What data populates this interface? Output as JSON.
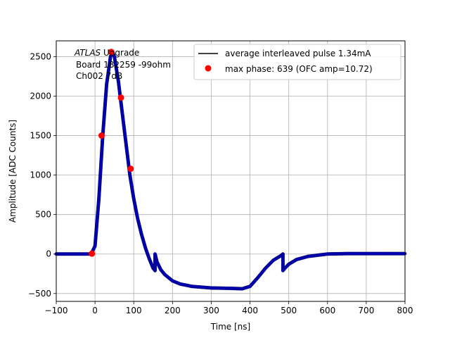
{
  "chart_data": {
    "type": "line",
    "title": "",
    "xlabel": "Time [ns]",
    "ylabel": "Amplitude [ADC Counts]",
    "xlim": [
      -100,
      800
    ],
    "ylim": [
      -600,
      2700
    ],
    "xticks": [
      -100,
      0,
      100,
      200,
      300,
      400,
      500,
      600,
      700,
      800
    ],
    "yticks": [
      -500,
      0,
      500,
      1000,
      1500,
      2000,
      2500
    ],
    "grid": true,
    "legend_position": "top-right",
    "annotation": {
      "italic": "ATLAS",
      "line1_rest": " Upgrade",
      "line2": "Board 182259 -99ohm",
      "line3": "Ch002 7dB"
    },
    "series": [
      {
        "name": "average interleaved pulse 1.34mA",
        "color": "#000000",
        "marker_color": "#0000cc",
        "x": [
          -100,
          -50,
          -10,
          0,
          10,
          20,
          30,
          40,
          45,
          50,
          60,
          70,
          80,
          90,
          100,
          110,
          120,
          130,
          140,
          150,
          155,
          155,
          160,
          170,
          180,
          200,
          220,
          250,
          300,
          350,
          380,
          400,
          420,
          440,
          460,
          480,
          485,
          485,
          490,
          500,
          520,
          550,
          600,
          650,
          700,
          750,
          800
        ],
        "y": [
          0,
          0,
          0,
          100,
          700,
          1500,
          2150,
          2500,
          2560,
          2500,
          2200,
          1800,
          1400,
          1000,
          700,
          450,
          250,
          80,
          -60,
          -180,
          -210,
          0,
          -100,
          -200,
          -260,
          -340,
          -380,
          -410,
          -430,
          -435,
          -440,
          -410,
          -300,
          -180,
          -80,
          -20,
          0,
          -210,
          -180,
          -130,
          -70,
          -30,
          0,
          5,
          5,
          5,
          5
        ]
      },
      {
        "name": "max phase: 639 (OFC amp=10.72)",
        "color": "#ff0000",
        "type": "scatter",
        "x": [
          -8,
          17,
          42,
          67,
          92
        ],
        "y": [
          5,
          1500,
          2560,
          1980,
          1080
        ]
      }
    ]
  }
}
